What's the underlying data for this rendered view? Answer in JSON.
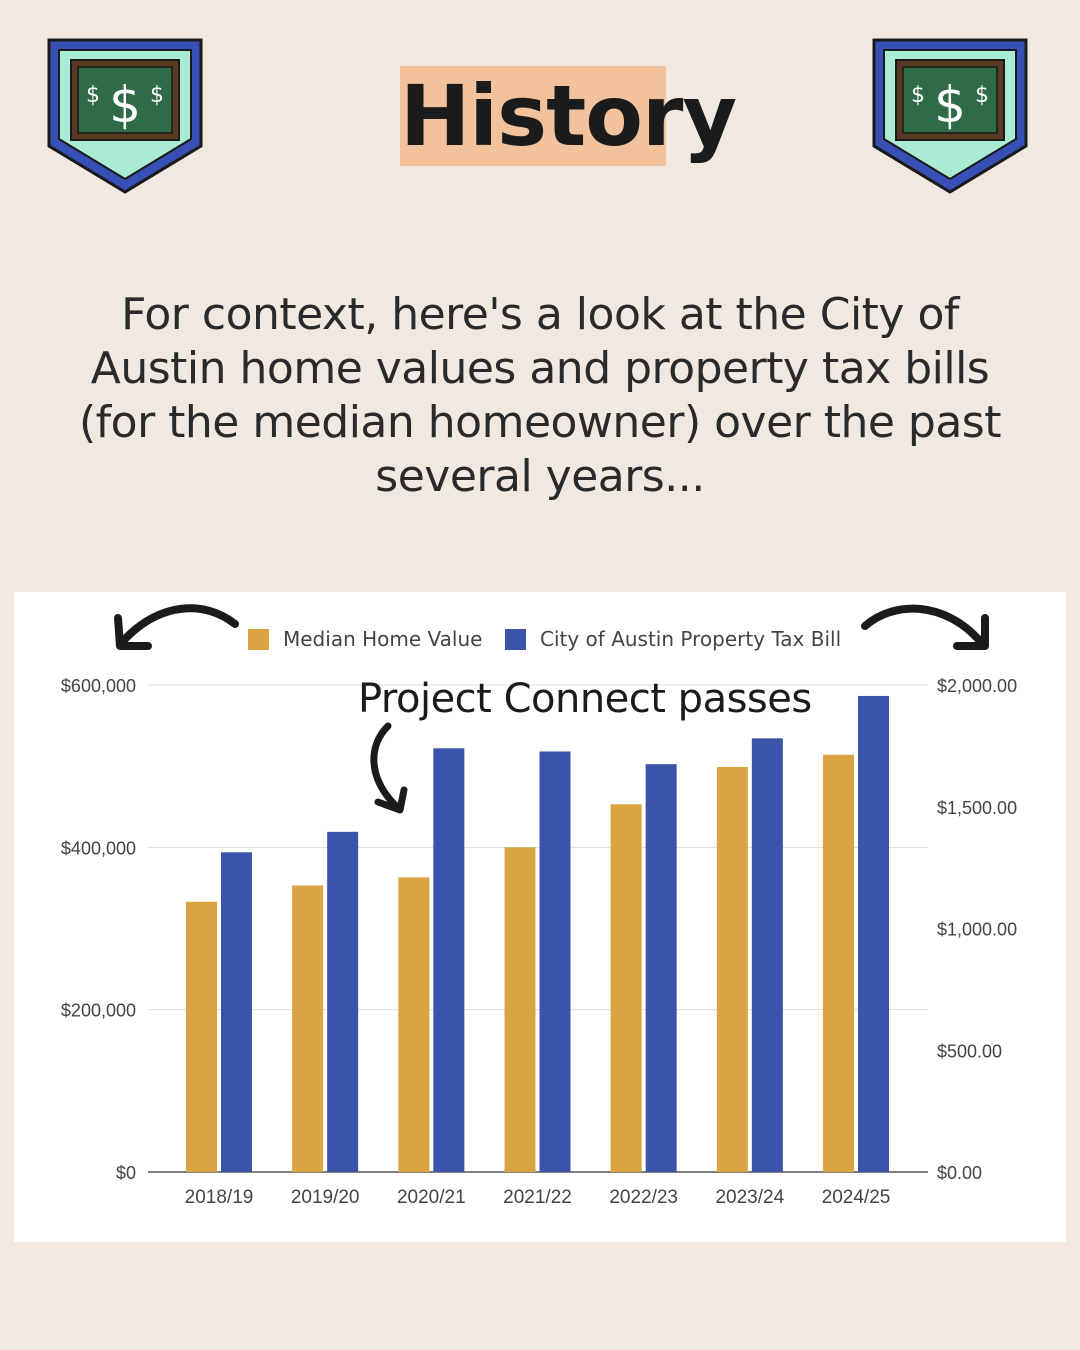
{
  "header": {
    "title": "History",
    "badge_icon": "dollar-chalkboard-icon"
  },
  "intro_text": "For context, here's a look at the City of Austin home values and property tax bills (for the median homeowner) over the past several years...",
  "annotation": "Project Connect passes",
  "colors": {
    "background": "#f1e9df",
    "title_highlight": "#f2c29c",
    "home_value": "#d9a441",
    "tax_bill": "#3b53a8",
    "badge_border": "#3850b5",
    "badge_board": "#2f6b46",
    "badge_mint": "#a9ecd3"
  },
  "chart_data": {
    "type": "bar",
    "categories": [
      "2018/19",
      "2019/20",
      "2020/21",
      "2021/22",
      "2022/23",
      "2023/24",
      "2024/25"
    ],
    "series": [
      {
        "name": "Median Home Value",
        "axis": "left",
        "values": [
          333000,
          353000,
          363000,
          400000,
          453000,
          499000,
          514000
        ]
      },
      {
        "name": "City of Austin Property Tax Bill",
        "axis": "right",
        "values": [
          1313,
          1397,
          1740,
          1727,
          1675,
          1781,
          1955
        ]
      }
    ],
    "y_left": {
      "ticks": [
        "$600,000",
        "$400,000",
        "$200,000",
        "$0"
      ],
      "min": 0,
      "max": 600000
    },
    "y_right": {
      "ticks": [
        "$2,000.00",
        "$1,500.00",
        "$1,000.00",
        "$500.00",
        "$0.00"
      ],
      "min": 0,
      "max": 2000
    },
    "grid": true,
    "legend_position": "top"
  }
}
